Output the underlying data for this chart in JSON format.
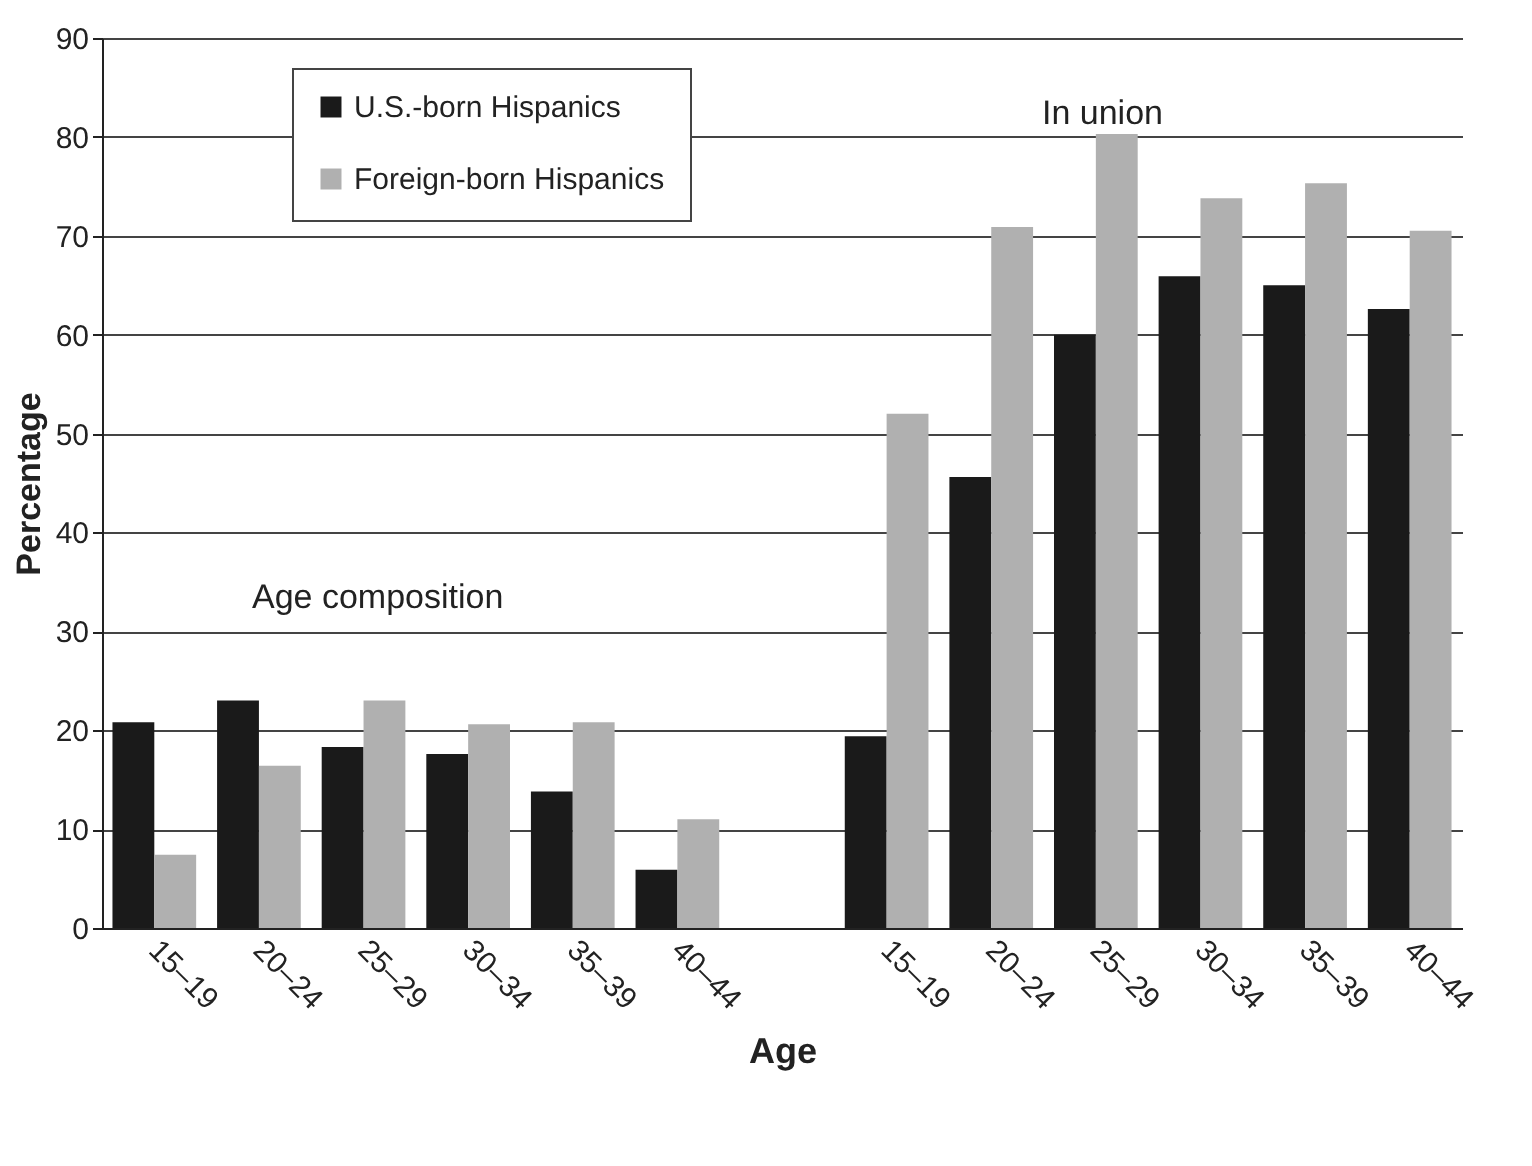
{
  "chart_data": {
    "type": "bar",
    "xlabel": "Age",
    "ylabel": "Percentage",
    "categories": [
      "15–19",
      "20–24",
      "25–29",
      "30–34",
      "35–39",
      "40–44",
      null,
      "15–19",
      "20–24",
      "25–29",
      "30–34",
      "35–39",
      "40–44"
    ],
    "series": [
      {
        "name": "U.S.-born Hispanics",
        "color": "#1a1a1a",
        "values": [
          20.8,
          23,
          18.3,
          17.6,
          13.8,
          5.9,
          null,
          19.4,
          45.6,
          60,
          65.9,
          65,
          62.6
        ]
      },
      {
        "name": "Foreign-born Hispanics",
        "color": "#b0b0b0",
        "values": [
          7.4,
          16.4,
          23,
          20.6,
          20.8,
          11,
          null,
          52,
          70.9,
          80.3,
          73.8,
          75.3,
          70.5
        ]
      }
    ],
    "ylim": [
      0,
      90
    ],
    "yticks": [
      0,
      10,
      20,
      30,
      40,
      50,
      60,
      70,
      80,
      90
    ],
    "grid": "y",
    "legend": "top left",
    "annotations": [
      "Age composition",
      "In union"
    ]
  }
}
